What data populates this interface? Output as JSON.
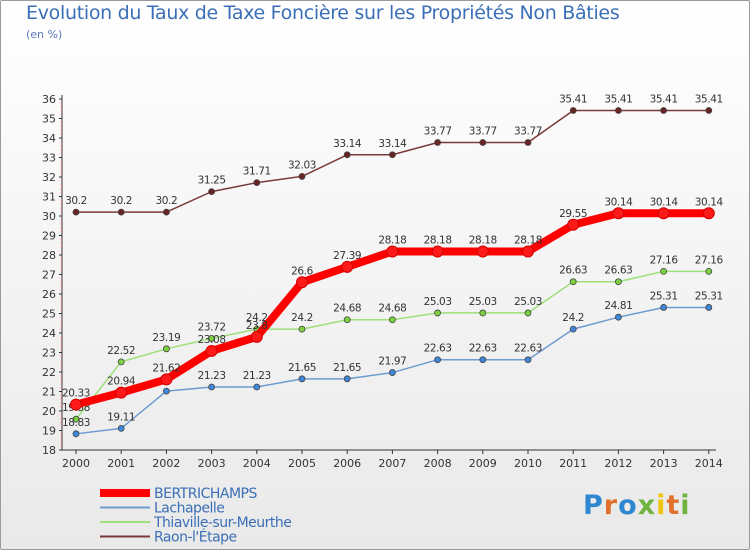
{
  "title": "Evolution du Taux de Taxe Foncière sur les Propriétés Non Bâties",
  "subtitle": "(en %)",
  "logo": {
    "letters": [
      "P",
      "r",
      "o",
      "x",
      "i",
      "t",
      "i"
    ],
    "colors": [
      "#2f86d1",
      "#e0712c",
      "#2f86d1",
      "#6fb43f",
      "#f1c40f",
      "#e0712c",
      "#6fb43f"
    ]
  },
  "chart_data": {
    "type": "line",
    "title": "Evolution du Taux de Taxe Foncière sur les Propriétés Non Bâties",
    "ylabel": "(en %)",
    "ylim": [
      18,
      36
    ],
    "yticks": [
      18,
      19,
      20,
      21,
      22,
      23,
      24,
      25,
      26,
      27,
      28,
      29,
      30,
      31,
      32,
      33,
      34,
      35,
      36
    ],
    "categories": [
      "2000",
      "2001",
      "2002",
      "2003",
      "2004",
      "2005",
      "2006",
      "2007",
      "2008",
      "2009",
      "2010",
      "2011",
      "2012",
      "2013",
      "2014"
    ],
    "series": [
      {
        "name": "BERTRICHAMPS",
        "color": "#ff0000",
        "width": 8,
        "marker": "#ff1a1a",
        "values": [
          20.33,
          20.94,
          21.62,
          23.08,
          23.8,
          26.6,
          27.39,
          28.18,
          28.18,
          28.18,
          28.18,
          29.55,
          30.14,
          30.14,
          30.14
        ],
        "labels": [
          "20.33",
          "20.94",
          "21.62",
          "23.08",
          "23.8",
          "26.6",
          "27.39",
          "28.18",
          "28.18",
          "28.18",
          "28.18",
          "29.55",
          "30.14",
          "30.14",
          "30.14"
        ]
      },
      {
        "name": "Lachapelle",
        "color": "#6e9bd1",
        "width": 1.5,
        "marker": "#3f87d8",
        "values": [
          18.83,
          19.11,
          21.02,
          21.23,
          21.23,
          21.65,
          21.65,
          21.97,
          22.63,
          22.63,
          22.63,
          24.2,
          24.81,
          25.31,
          25.31
        ],
        "labels": [
          "18.83",
          "19.11",
          "",
          "21.23",
          "21.23",
          "21.65",
          "21.65",
          "21.97",
          "22.63",
          "22.63",
          "22.63",
          "24.2",
          "24.81",
          "25.31",
          "25.31"
        ]
      },
      {
        "name": "Thiaville-sur-Meurthe",
        "color": "#9ee07a",
        "width": 1.5,
        "marker": "#7bd13f",
        "values": [
          19.58,
          22.52,
          23.19,
          23.72,
          24.2,
          24.2,
          24.68,
          24.68,
          25.03,
          25.03,
          25.03,
          26.63,
          26.63,
          27.16,
          27.16
        ],
        "labels": [
          "19.58",
          "22.52",
          "23.19",
          "23.72",
          "24.2",
          "24.2",
          "24.68",
          "24.68",
          "25.03",
          "25.03",
          "25.03",
          "26.63",
          "26.63",
          "27.16",
          "27.16"
        ]
      },
      {
        "name": "Raon-l'Étape",
        "color": "#7a3a3a",
        "width": 1.5,
        "marker": "#6b2424",
        "values": [
          30.2,
          30.2,
          30.2,
          31.25,
          31.71,
          32.03,
          33.14,
          33.14,
          33.77,
          33.77,
          33.77,
          35.41,
          35.41,
          35.41,
          35.41
        ],
        "labels": [
          "30.2",
          "30.2",
          "30.2",
          "31.25",
          "31.71",
          "32.03",
          "33.14",
          "33.14",
          "33.77",
          "33.77",
          "33.77",
          "35.41",
          "35.41",
          "35.41",
          "35.41"
        ]
      }
    ],
    "legend": {
      "position": "bottom-left"
    },
    "grid": false
  }
}
